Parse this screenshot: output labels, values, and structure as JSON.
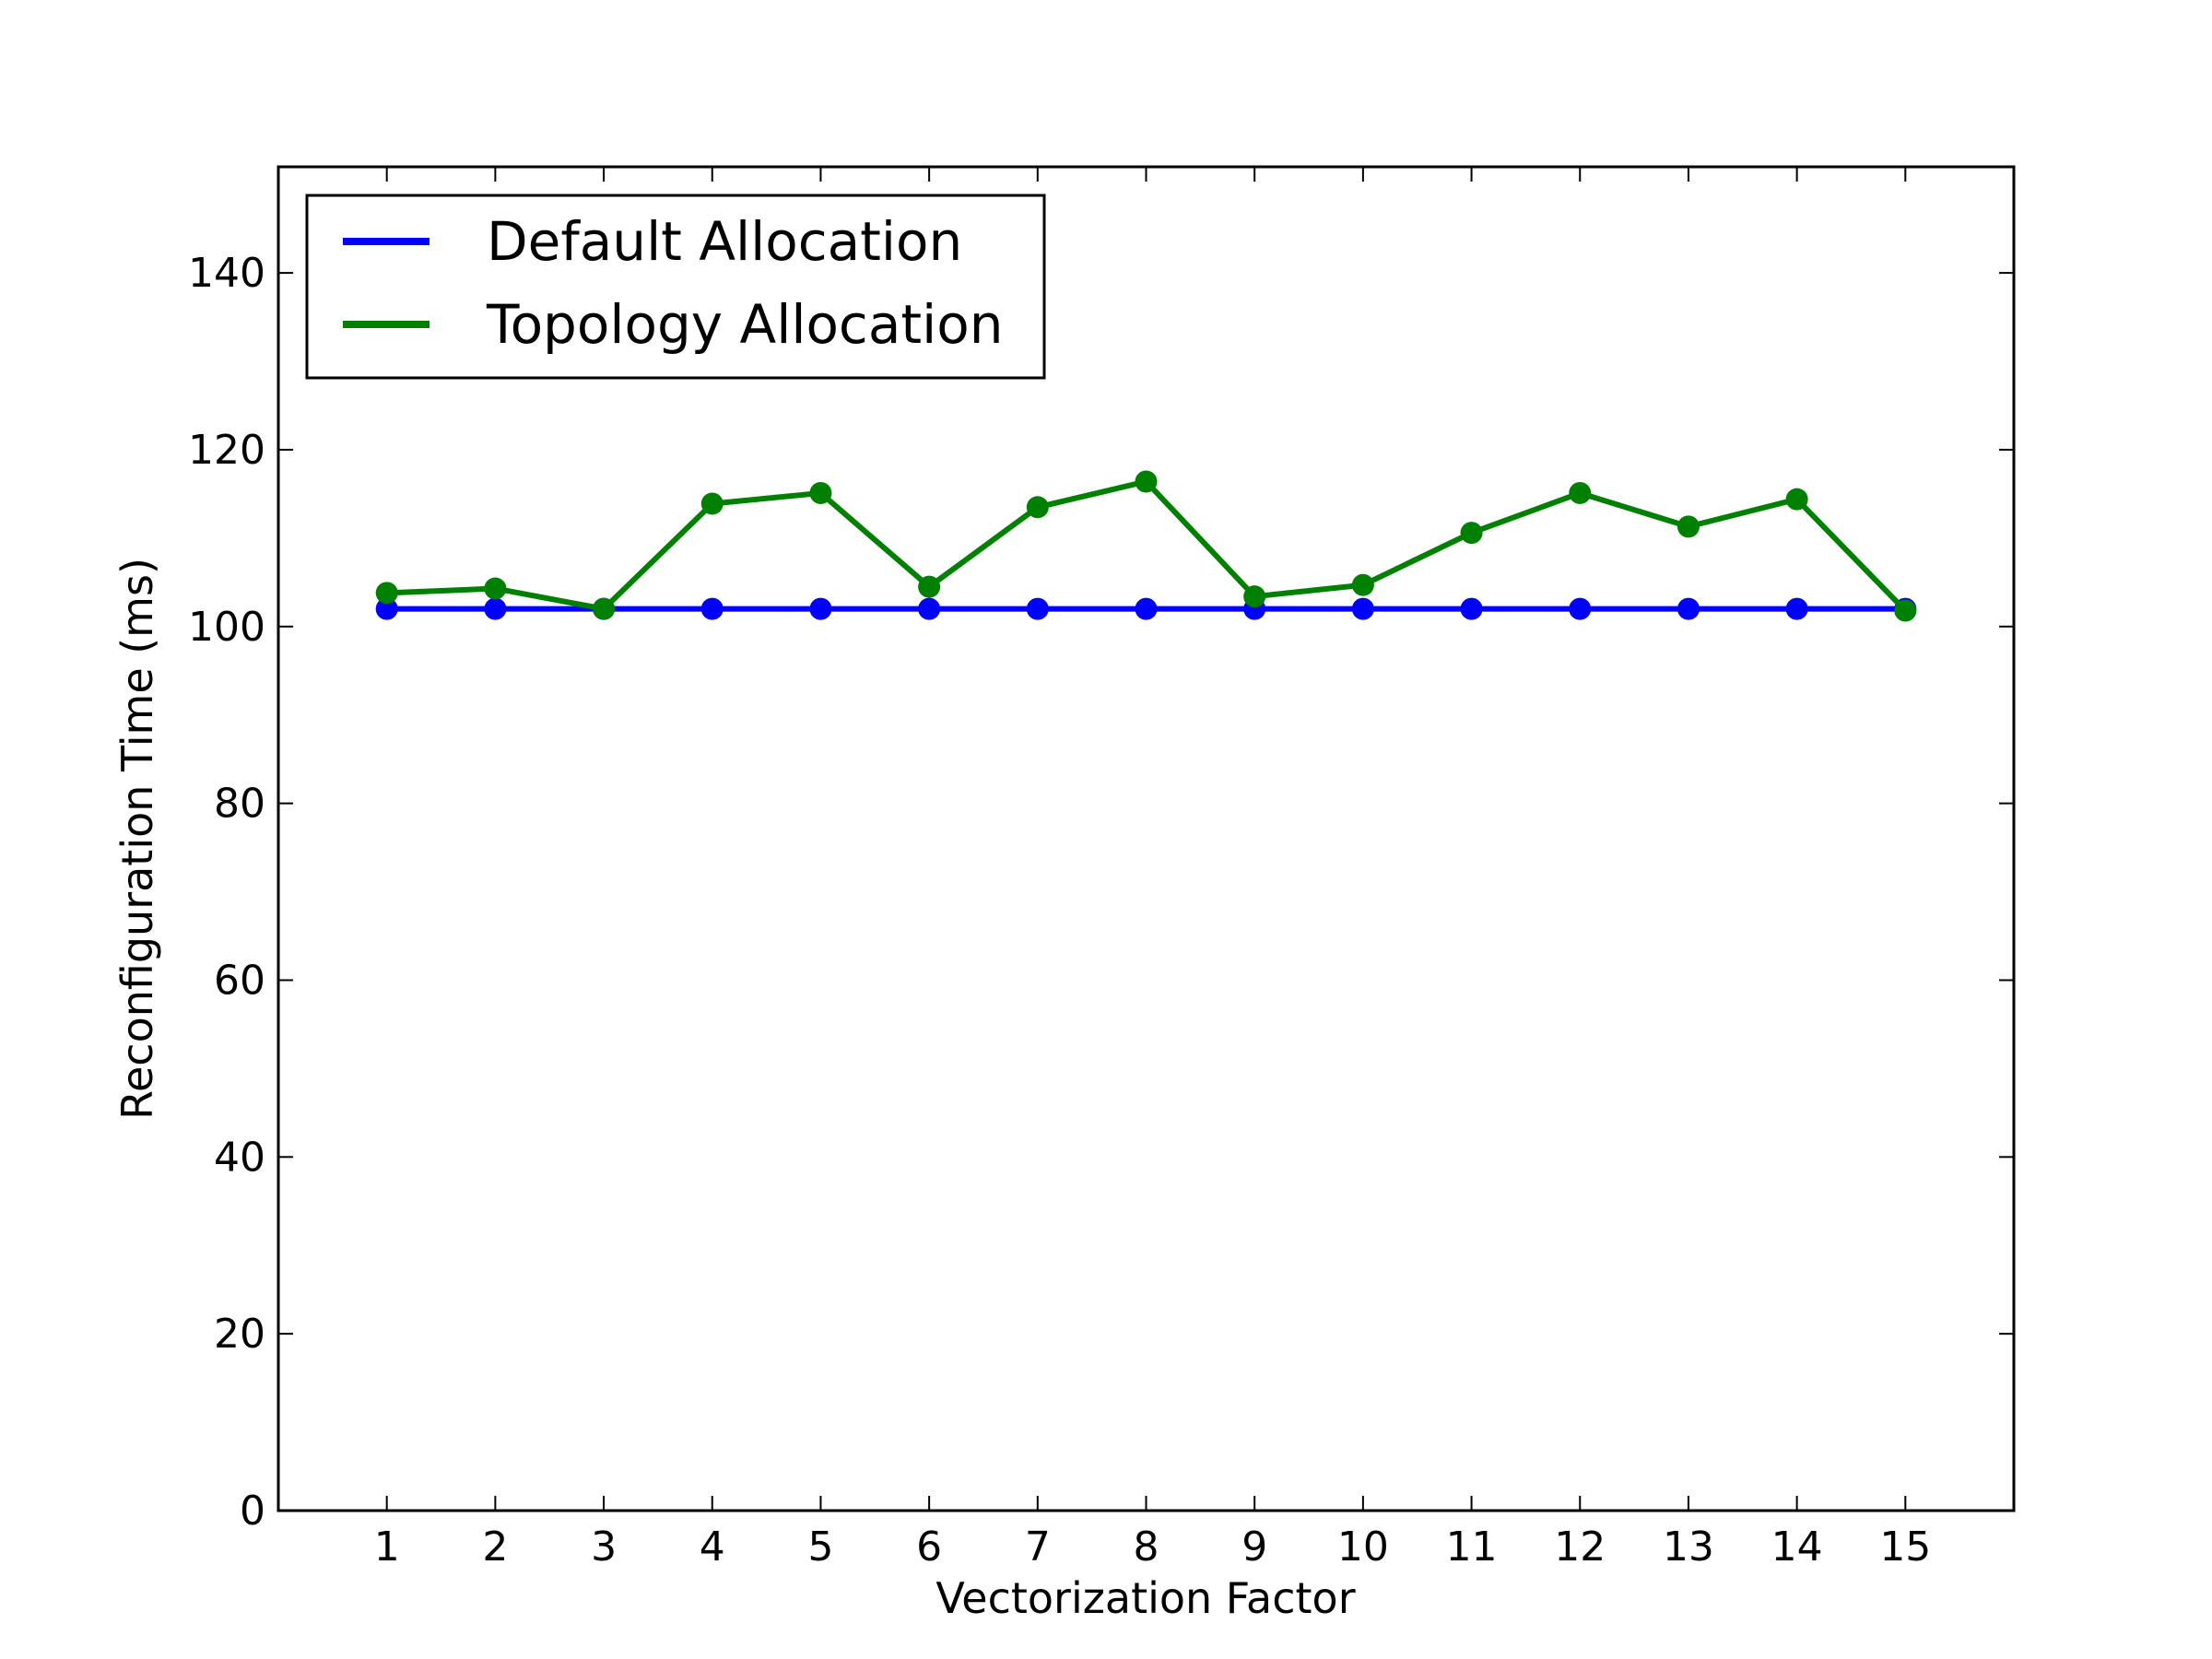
{
  "chart_data": {
    "type": "line",
    "title": "",
    "xlabel": "Vectorization Factor",
    "ylabel": "Reconfiguration Time (ms)",
    "x": [
      1,
      2,
      3,
      4,
      5,
      6,
      7,
      8,
      9,
      10,
      11,
      12,
      13,
      14,
      15
    ],
    "xlim": [
      0,
      16
    ],
    "ylim": [
      0,
      152
    ],
    "xticks": [
      "1",
      "2",
      "3",
      "4",
      "5",
      "6",
      "7",
      "8",
      "9",
      "10",
      "11",
      "12",
      "13",
      "14",
      "15"
    ],
    "yticks": [
      "0",
      "20",
      "40",
      "60",
      "80",
      "100",
      "120",
      "140"
    ],
    "grid": false,
    "legend_position": "top-left",
    "series": [
      {
        "name": "Default Allocation",
        "color": "#0000ff",
        "marker": "circle",
        "values": [
          102,
          102,
          102,
          102,
          102,
          102,
          102,
          102,
          102,
          102,
          102,
          102,
          102,
          102,
          102
        ]
      },
      {
        "name": "Topology Allocation",
        "color": "#008000",
        "marker": "circle",
        "values": [
          103.8,
          104.3,
          102.0,
          113.9,
          115.1,
          104.5,
          113.5,
          116.4,
          103.4,
          104.7,
          110.6,
          115.1,
          111.3,
          114.4,
          101.8
        ]
      }
    ]
  }
}
